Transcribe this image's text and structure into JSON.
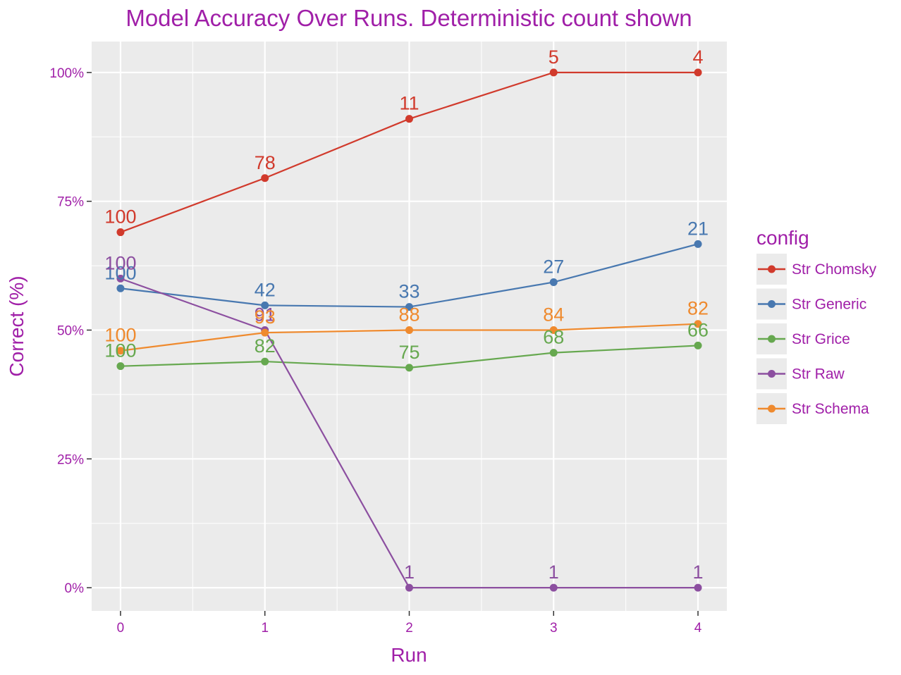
{
  "chart_data": {
    "type": "line",
    "title": "Model Accuracy Over Runs. Deterministic count shown",
    "xlabel": "Run",
    "ylabel": "Correct (%)",
    "x": [
      0,
      1,
      2,
      3,
      4
    ],
    "xlim": [
      -0.2,
      4.2
    ],
    "ylim": [
      -0.045,
      1.06
    ],
    "y_ticks": [
      0,
      0.25,
      0.5,
      0.75,
      1.0
    ],
    "y_tick_labels": [
      "0%",
      "25%",
      "50%",
      "75%",
      "100%"
    ],
    "x_ticks": [
      0,
      1,
      2,
      3,
      4
    ],
    "x_tick_labels": [
      "0",
      "1",
      "2",
      "3",
      "4"
    ],
    "grid": true,
    "legend": {
      "title": "config",
      "placement": "right"
    },
    "series": [
      {
        "name": "Str Chomsky",
        "color": "#d13a2c",
        "values": [
          0.69,
          0.795,
          0.91,
          1.0,
          1.0
        ],
        "labels": [
          "100",
          "78",
          "11",
          "5",
          "4"
        ]
      },
      {
        "name": "Str Generic",
        "color": "#4878b0",
        "values": [
          0.581,
          0.548,
          0.545,
          0.593,
          0.667
        ],
        "labels": [
          "100",
          "42",
          "33",
          "27",
          "21"
        ]
      },
      {
        "name": "Str Grice",
        "color": "#66a84f",
        "values": [
          0.43,
          0.439,
          0.427,
          0.456,
          0.47
        ],
        "labels": [
          "100",
          "82",
          "75",
          "68",
          "66"
        ]
      },
      {
        "name": "Str Raw",
        "color": "#8c4fa0",
        "values": [
          0.6,
          0.5,
          0.0,
          0.0,
          0.0
        ],
        "labels": [
          "100",
          "91",
          "1",
          "1",
          "1"
        ]
      },
      {
        "name": "Str Schema",
        "color": "#ef8a2e",
        "values": [
          0.46,
          0.495,
          0.5,
          0.5,
          0.512
        ],
        "labels": [
          "100",
          "93",
          "88",
          "84",
          "82"
        ]
      }
    ]
  }
}
